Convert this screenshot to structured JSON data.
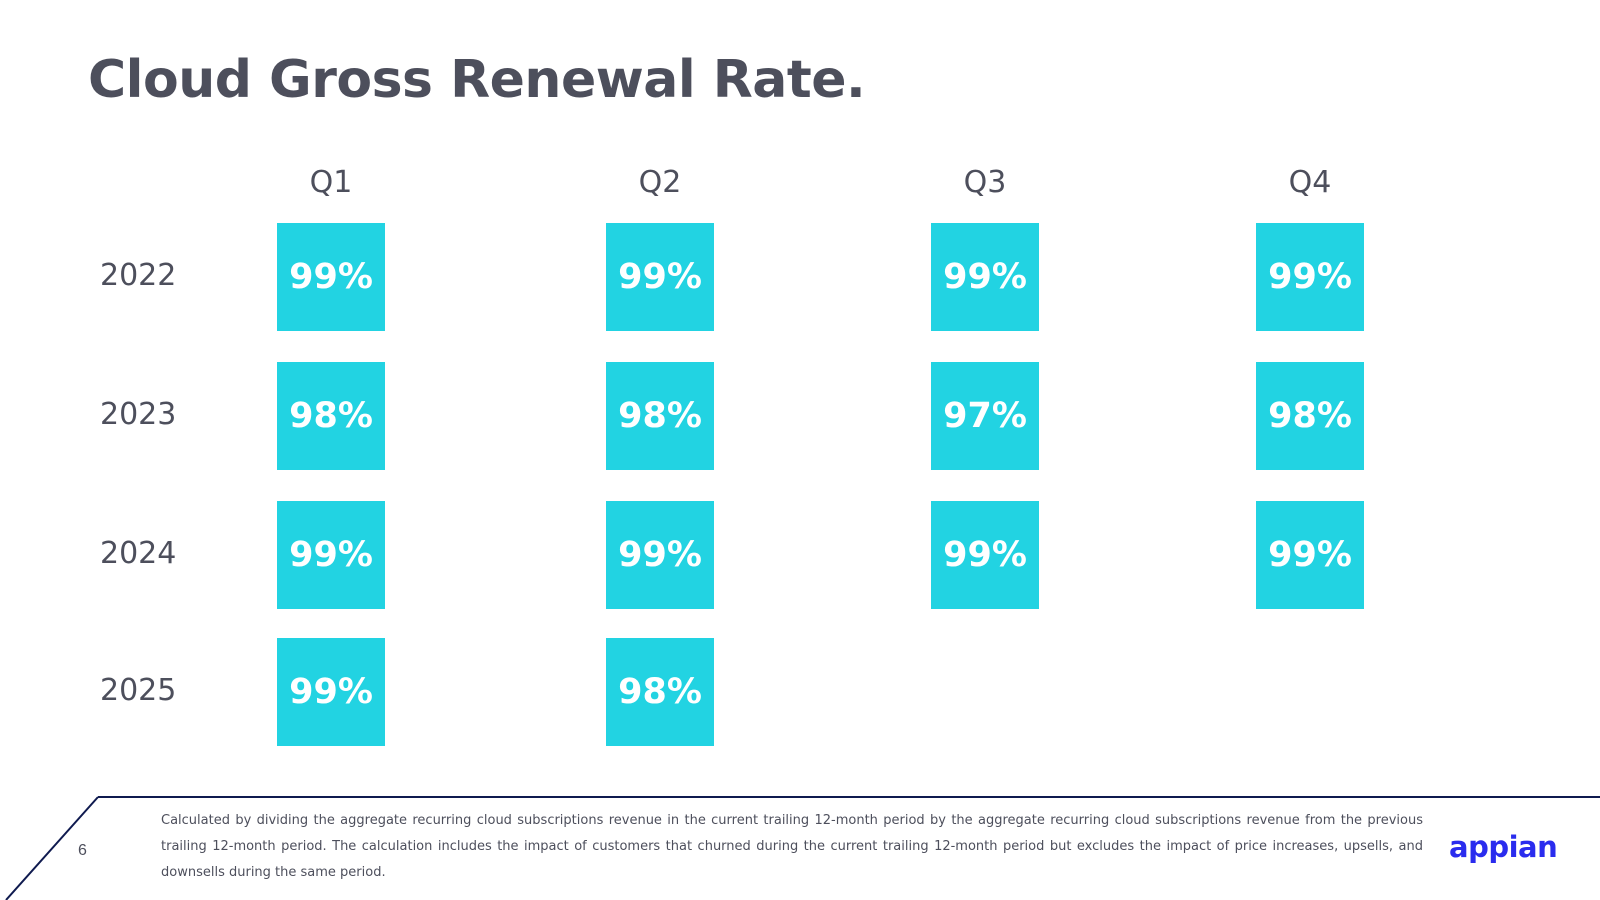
{
  "title": "Cloud Gross Renewal Rate.",
  "chart_data": {
    "type": "table",
    "title": "Cloud Gross Renewal Rate.",
    "unit": "%",
    "columns": [
      "Q1",
      "Q2",
      "Q3",
      "Q4"
    ],
    "rows": [
      {
        "year": "2022",
        "values": [
          99,
          99,
          99,
          99
        ]
      },
      {
        "year": "2023",
        "values": [
          98,
          98,
          97,
          98
        ]
      },
      {
        "year": "2024",
        "values": [
          99,
          99,
          99,
          99
        ]
      },
      {
        "year": "2025",
        "values": [
          99,
          98,
          null,
          null
        ]
      }
    ],
    "cell_color": "#22d3e2"
  },
  "footer": {
    "page_number": "6",
    "note": "Calculated by dividing the aggregate recurring cloud subscriptions revenue in the current trailing 12-month period by the aggregate recurring cloud subscriptions revenue from the previous trailing 12-month period. The calculation includes the impact of customers that churned during the current trailing 12-month period but excludes the impact of price increases, upsells, and downsells during the same period.",
    "logo_text": "appian"
  },
  "colors": {
    "text": "#4d4f5c",
    "accent": "#22d3e2",
    "footer_line": "#0f1a4f",
    "logo": "#2a2cee"
  }
}
